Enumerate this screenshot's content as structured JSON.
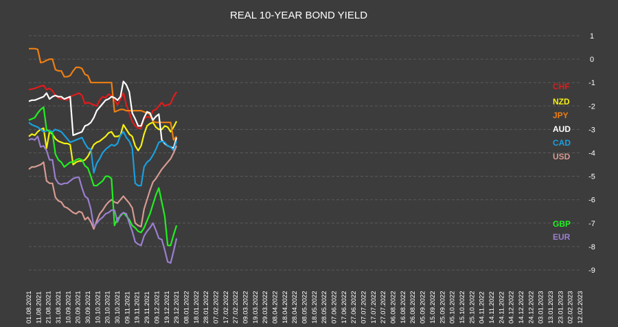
{
  "chart_data": {
    "type": "line",
    "title": "REAL 10-YEAR  BOND YIELD",
    "xlabel": "",
    "ylabel": "",
    "ylim": [
      -9,
      1
    ],
    "yticks": [
      1,
      0,
      -1,
      -2,
      -3,
      -4,
      -5,
      -6,
      -7,
      -8,
      -9
    ],
    "grid": "horizontal",
    "legend_placement": "right",
    "x_tick_labels": [
      "01.08.2021",
      "11.08.2021",
      "21.08.2021",
      "31.08.2021",
      "10.09.2021",
      "20.09.2021",
      "30.09.2021",
      "10.10.2021",
      "20.10.2021",
      "30.10.2021",
      "09.11.2021",
      "19.11.2021",
      "29.11.2021",
      "09.12.2021",
      "19.12.2021",
      "29.12.2021",
      "08.01.2022",
      "18.01.2022",
      "28.01.2022",
      "07.02.2022",
      "17.02.2022",
      "27.02.2022",
      "09.03.2022",
      "19.03.2022",
      "29.03.2022",
      "08.04.2022",
      "18.04.2022",
      "28.04.2022",
      "08.05.2022",
      "18.05.2022",
      "28.05.2022",
      "07.06.2022",
      "17.06.2022",
      "27.06.2022",
      "07.07.2022",
      "17.07.2022",
      "27.07.2022",
      "06.08.2022",
      "16.08.2022",
      "26.08.2022",
      "05.09.2022",
      "15.09.2022",
      "25.09.2022",
      "05.10.2022",
      "15.10.2022",
      "25.10.2022",
      "04.11.2022",
      "14.11.2022",
      "24.11.2022",
      "04.12.2022",
      "14.12.2022",
      "24.12.2022",
      "03.01.2023",
      "13.01.2023",
      "23.01.2023",
      "02.02.2023",
      "12.02.2023"
    ],
    "series": [
      {
        "name": "CHF",
        "color": "#e01c1c",
        "values": [
          -1.3,
          -1.28,
          -1.25,
          -1.2,
          -1.15,
          -1.12,
          -1.3,
          -1.25,
          -1.35,
          -1.55,
          -1.65,
          -1.7,
          -1.7,
          -1.75,
          -1.6,
          -1.55,
          -1.5,
          -1.45,
          -1.55,
          -1.9,
          -1.85,
          -1.9,
          -1.95,
          -2.0,
          -1.75,
          -1.6,
          -1.65,
          -1.5,
          -1.55,
          -1.75,
          -1.95,
          -1.7,
          -1.45,
          -1.95,
          -2.3,
          -2.65,
          -2.85,
          -2.95,
          -2.95,
          -2.55,
          -2.45,
          -2.5,
          -2.2,
          -2.15,
          -2.0,
          -1.85,
          -2.0,
          -1.95,
          -1.9,
          -1.6,
          -1.4
        ]
      },
      {
        "name": "NZD",
        "color": "#f5f010",
        "values": [
          -3.3,
          -3.2,
          -3.25,
          -3.1,
          -3.0,
          -2.95,
          -3.8,
          -3.1,
          -3.2,
          -3.4,
          -3.5,
          -3.55,
          -3.6,
          -3.6,
          -3.65,
          -4.5,
          -4.4,
          -4.35,
          -4.35,
          -4.3,
          -4.15,
          -3.9,
          -3.65,
          -3.55,
          -3.5,
          -3.4,
          -3.3,
          -3.15,
          -3.1,
          -3.3,
          -3.3,
          -3.25,
          -2.8,
          -3.0,
          -3.2,
          -3.3,
          -3.7,
          -3.9,
          -3.7,
          -3.2,
          -2.85,
          -2.75,
          -2.7,
          -2.9,
          -3.0,
          -3.0,
          -2.85,
          -2.9,
          -3.1,
          -2.9,
          -2.65
        ]
      },
      {
        "name": "JPY",
        "color": "#ee7e12",
        "values": [
          0.45,
          0.45,
          0.45,
          0.42,
          -0.15,
          -0.12,
          -0.05,
          0.0,
          0.0,
          -0.45,
          -0.5,
          -0.5,
          -0.75,
          -0.75,
          -0.7,
          -0.5,
          -0.35,
          -0.35,
          -0.4,
          -0.65,
          -0.7,
          -1.0,
          -1.0,
          -1.0,
          -1.0,
          -1.0,
          -1.0,
          -1.0,
          -1.0,
          -2.25,
          -2.2,
          -2.15,
          -2.15,
          -2.2,
          -2.2,
          -2.2,
          -2.2,
          -2.2,
          -2.2,
          -2.25,
          -2.3,
          -2.35,
          -2.65,
          -2.7,
          -2.7,
          -2.7,
          -2.7,
          -2.7,
          -2.7,
          -3.45,
          -3.3
        ]
      },
      {
        "name": "AUD",
        "color": "#ffffff",
        "values": [
          -1.8,
          -1.75,
          -1.75,
          -1.7,
          -1.65,
          -1.6,
          -1.45,
          -1.7,
          -1.6,
          -1.55,
          -1.6,
          -1.6,
          -1.7,
          -1.65,
          -1.6,
          -3.25,
          -3.2,
          -3.15,
          -3.1,
          -2.85,
          -2.8,
          -2.7,
          -2.5,
          -2.2,
          -2.05,
          -1.9,
          -1.75,
          -1.7,
          -1.6,
          -1.65,
          -1.75,
          -1.6,
          -0.95,
          -1.1,
          -1.4,
          -2.3,
          -2.55,
          -2.85,
          -2.85,
          -2.5,
          -2.25,
          -2.3,
          -2.6,
          -2.45,
          -2.35,
          -3.45,
          -3.6,
          -3.7,
          -3.75,
          -3.8,
          -3.35
        ]
      },
      {
        "name": "CAD",
        "color": "#1a9fe0",
        "values": [
          -2.7,
          -2.8,
          -2.85,
          -2.9,
          -3.0,
          -3.1,
          -3.05,
          -3.05,
          -3.1,
          -3.0,
          -3.05,
          -3.1,
          -3.25,
          -3.4,
          -3.55,
          -3.5,
          -3.45,
          -3.4,
          -3.35,
          -3.6,
          -3.8,
          -3.85,
          -4.85,
          -4.45,
          -4.25,
          -4.0,
          -3.85,
          -3.75,
          -3.65,
          -3.7,
          -3.6,
          -3.25,
          -3.1,
          -3.35,
          -3.5,
          -3.8,
          -5.3,
          -5.4,
          -5.4,
          -4.6,
          -4.4,
          -4.3,
          -4.1,
          -3.85,
          -3.55,
          -3.5,
          -3.55,
          -3.7,
          -3.75,
          -3.9,
          -3.5
        ]
      },
      {
        "name": "USD",
        "color": "#d89a92",
        "values": [
          -4.7,
          -4.6,
          -4.6,
          -4.55,
          -4.5,
          -4.4,
          -5.2,
          -5.3,
          -5.3,
          -5.9,
          -6.05,
          -6.1,
          -6.3,
          -6.35,
          -6.45,
          -6.55,
          -6.6,
          -6.5,
          -6.55,
          -6.85,
          -6.75,
          -6.95,
          -7.25,
          -6.9,
          -6.6,
          -6.45,
          -6.25,
          -6.1,
          -6.0,
          -6.1,
          -6.15,
          -6.0,
          -5.85,
          -6.0,
          -6.15,
          -6.35,
          -7.0,
          -7.1,
          -7.15,
          -6.4,
          -6.0,
          -5.6,
          -5.25,
          -5.1,
          -4.9,
          -4.7,
          -4.55,
          -4.4,
          -4.25,
          -4.0,
          -3.7
        ]
      },
      {
        "name": "GBP",
        "color": "#22ee22",
        "values": [
          -2.6,
          -2.55,
          -2.5,
          -2.3,
          -2.15,
          -2.05,
          -3.0,
          -3.1,
          -3.15,
          -4.05,
          -4.3,
          -4.4,
          -4.6,
          -4.5,
          -4.4,
          -4.4,
          -4.3,
          -4.25,
          -4.3,
          -4.55,
          -4.65,
          -5.0,
          -5.4,
          -5.4,
          -5.3,
          -5.2,
          -5.0,
          -5.0,
          -5.1,
          -7.1,
          -6.8,
          -6.7,
          -6.55,
          -6.7,
          -6.85,
          -7.1,
          -7.2,
          -7.35,
          -7.4,
          -7.2,
          -6.9,
          -6.6,
          -6.2,
          -5.8,
          -5.5,
          -6.1,
          -6.7,
          -7.95,
          -7.95,
          -7.5,
          -7.1
        ]
      },
      {
        "name": "EUR",
        "color": "#9b7fd0",
        "values": [
          -3.45,
          -3.4,
          -3.45,
          -3.3,
          -3.75,
          -3.7,
          -3.9,
          -4.3,
          -4.3,
          -5.1,
          -5.3,
          -5.35,
          -5.3,
          -5.3,
          -5.2,
          -5.1,
          -5.05,
          -5.05,
          -5.5,
          -5.85,
          -5.95,
          -6.4,
          -7.15,
          -7.0,
          -6.85,
          -6.75,
          -6.6,
          -6.55,
          -6.45,
          -6.45,
          -6.95,
          -6.65,
          -6.55,
          -6.6,
          -7.0,
          -7.35,
          -7.8,
          -7.9,
          -7.95,
          -7.55,
          -7.35,
          -7.2,
          -7.0,
          -7.3,
          -7.65,
          -7.7,
          -8.15,
          -8.65,
          -8.7,
          -8.2,
          -7.65
        ]
      }
    ]
  }
}
